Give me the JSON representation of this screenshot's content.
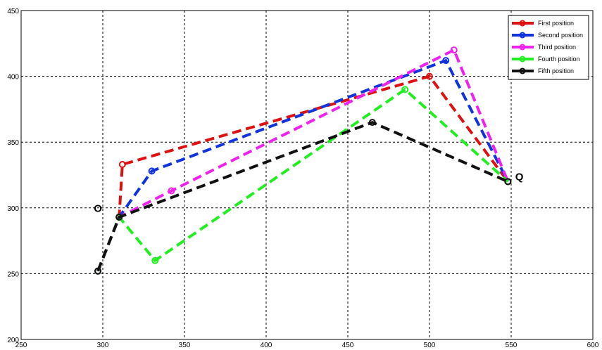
{
  "chart_data": {
    "type": "line",
    "xlim": [
      250,
      600
    ],
    "ylim": [
      200,
      450
    ],
    "xticks": [
      250,
      300,
      350,
      400,
      450,
      500,
      550,
      600
    ],
    "yticks": [
      200,
      250,
      300,
      350,
      400,
      450
    ],
    "grid": true,
    "legend_position": "top-right",
    "series": [
      {
        "name": "First position",
        "color": "#dd1111",
        "points": [
          [
            297,
            252
          ],
          [
            310,
            293
          ],
          [
            312,
            333
          ],
          [
            500,
            400
          ],
          [
            548,
            320
          ]
        ]
      },
      {
        "name": "Second position",
        "color": "#1133dd",
        "points": [
          [
            297,
            252
          ],
          [
            310,
            293
          ],
          [
            330,
            328
          ],
          [
            510,
            412
          ],
          [
            548,
            320
          ]
        ]
      },
      {
        "name": "Third position",
        "color": "#ee22ee",
        "points": [
          [
            297,
            252
          ],
          [
            310,
            293
          ],
          [
            342,
            313
          ],
          [
            515,
            420
          ],
          [
            548,
            320
          ]
        ]
      },
      {
        "name": "Fourth position",
        "color": "#22ee22",
        "points": [
          [
            297,
            252
          ],
          [
            310,
            293
          ],
          [
            332,
            260
          ],
          [
            485,
            390
          ],
          [
            548,
            320
          ]
        ]
      },
      {
        "name": "Fifth position",
        "color": "#111111",
        "points": [
          [
            297,
            252
          ],
          [
            310,
            293
          ],
          [
            465,
            365
          ],
          [
            548,
            320
          ]
        ]
      }
    ],
    "annotations": [
      {
        "text": "O",
        "x": 297,
        "y": 297
      },
      {
        "text": "Q",
        "x": 555,
        "y": 321
      }
    ]
  }
}
